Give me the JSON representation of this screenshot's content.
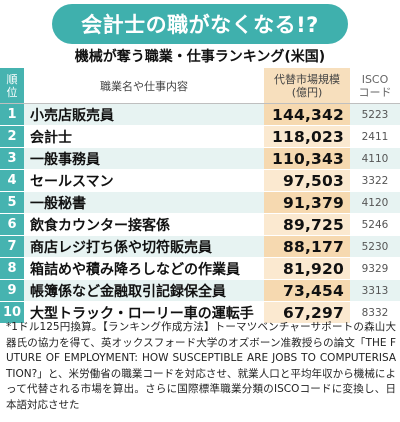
{
  "banner": {
    "title": "会計士の職がなくなる!?"
  },
  "subtitle": "機械が奪う職業・仕事ランキング(米国)",
  "table": {
    "headers": {
      "rank": [
        "順",
        "位"
      ],
      "name": "職業名や仕事内容",
      "market": [
        "代替市場規模",
        "(億円)"
      ],
      "isco": [
        "ISCO",
        "コード"
      ]
    },
    "rows": [
      {
        "rank": "1",
        "name": "小売店販売員",
        "market": "144,342",
        "isco": "5223"
      },
      {
        "rank": "2",
        "name": "会計士",
        "market": "118,023",
        "isco": "2411"
      },
      {
        "rank": "3",
        "name": "一般事務員",
        "market": "110,343",
        "isco": "4110"
      },
      {
        "rank": "4",
        "name": "セールスマン",
        "market": "97,503",
        "isco": "3322"
      },
      {
        "rank": "5",
        "name": "一般秘書",
        "market": "91,379",
        "isco": "4120"
      },
      {
        "rank": "6",
        "name": "飲食カウンター接客係",
        "market": "89,725",
        "isco": "5246"
      },
      {
        "rank": "7",
        "name": "商店レジ打ち係や切符販売員",
        "market": "88,177",
        "isco": "5230"
      },
      {
        "rank": "8",
        "name": "箱詰めや積み降ろしなどの作業員",
        "market": "81,920",
        "isco": "9329"
      },
      {
        "rank": "9",
        "name": "帳簿係など金融取引記録保全員",
        "market": "73,454",
        "isco": "3313"
      },
      {
        "rank": "10",
        "name": "大型トラック・ローリー車の運転手",
        "market": "67,297",
        "isco": "8332"
      }
    ]
  },
  "footnote": "*1ドル125円換算。【ランキング作成方法】トーマツベンチャーサポートの森山大器氏の協力を得て、英オックスフォード大学のオズボーン准教授らの論文「THE FUTURE OF EMPLOYMENT: HOW SUSCEPTIBLE ARE JOBS TO COMPUTERISATION?」と、米労働省の職業コードを対応させ、就業人口と平均年収から機械によって代替される市場を算出。さらに国際標準職業分類のISCOコードに変換し、日本語対応させた",
  "colors": {
    "teal": "#46b3b0",
    "banner": "#3fb0ad",
    "market_bg": "#f6d9b0",
    "row_tint": "#e7f3f2"
  }
}
